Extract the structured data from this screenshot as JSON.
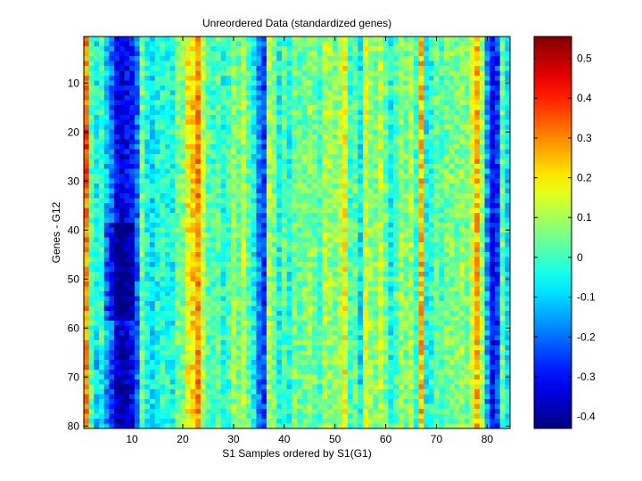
{
  "chart_data": {
    "type": "heatmap",
    "title": "Unreordered Data (standardized genes)",
    "xlabel": "S1 Samples ordered by S1(G1)",
    "ylabel": "Genes - G12",
    "xlim": [
      0.5,
      84.5
    ],
    "ylim": [
      0.5,
      80.5
    ],
    "y_direction": "reversed",
    "n_columns": 84,
    "n_rows": 80,
    "x_ticks": [
      10,
      20,
      30,
      40,
      50,
      60,
      70,
      80
    ],
    "y_ticks": [
      10,
      20,
      30,
      40,
      50,
      60,
      70,
      80
    ],
    "colormap": "jet",
    "color_range": [
      -0.43,
      0.555
    ],
    "colorbar": {
      "position": "right",
      "ticks": [
        -0.4,
        -0.3,
        -0.2,
        -0.1,
        0,
        0.1,
        0.2,
        0.3,
        0.4,
        0.5
      ],
      "tick_labels": [
        "-0.4",
        "-0.3",
        "-0.2",
        "-0.1",
        "0",
        "0.1",
        "0.2",
        "0.3",
        "0.4",
        "0.5"
      ]
    },
    "column_profile": [
      0.3,
      0.02,
      -0.05,
      0.0,
      -0.12,
      -0.2,
      -0.32,
      -0.35,
      -0.32,
      -0.28,
      -0.2,
      0.05,
      -0.05,
      -0.08,
      -0.04,
      -0.02,
      -0.03,
      -0.05,
      0.05,
      0.05,
      0.18,
      0.22,
      0.3,
      0.12,
      0.02,
      0.0,
      0.03,
      -0.03,
      0.0,
      0.08,
      0.03,
      0.12,
      0.02,
      -0.05,
      -0.18,
      -0.25,
      0.1,
      0.05,
      -0.05,
      0.02,
      -0.04,
      0.05,
      0.03,
      0.05,
      0.08,
      0.05,
      0.0,
      0.1,
      0.08,
      0.06,
      0.1,
      0.18,
      0.0,
      0.03,
      -0.08,
      0.15,
      0.08,
      0.05,
      0.12,
      0.05,
      -0.05,
      0.02,
      0.08,
      0.05,
      0.1,
      0.0,
      0.25,
      -0.05,
      -0.03,
      0.05,
      0.0,
      0.05,
      0.06,
      0.05,
      0.08,
      0.05,
      0.15,
      0.25,
      0.1,
      -0.15,
      -0.3,
      -0.25,
      0.05,
      -0.08
    ],
    "annotations": []
  }
}
